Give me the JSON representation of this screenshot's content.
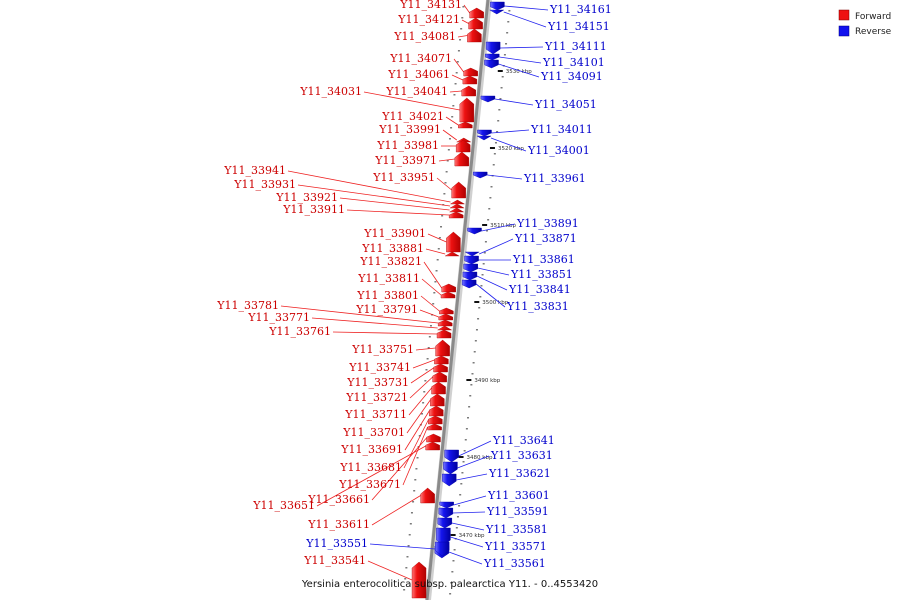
{
  "caption": "Yersinia enterocolitica subsp. palearctica Y11. - 0..4553420",
  "legend": [
    {
      "label": "Forward",
      "color": "#ee1111"
    },
    {
      "label": "Reverse",
      "color": "#1111ee"
    }
  ],
  "ticks": [
    "3530 kbp",
    "3520 kbp",
    "3510 kbp",
    "3500 kbp",
    "3490 kbp",
    "3480 kbp",
    "3470 kbp"
  ],
  "forward_genes": [
    "Y11_34131",
    "Y11_34121",
    "Y11_34081",
    "Y11_34071",
    "Y11_34061",
    "Y11_34041",
    "Y11_34031",
    "Y11_34021",
    "Y11_33991",
    "Y11_33981",
    "Y11_33971",
    "Y11_33951",
    "Y11_33941",
    "Y11_33931",
    "Y11_33921",
    "Y11_33911",
    "Y11_33901",
    "Y11_33881",
    "Y11_33821",
    "Y11_33811",
    "Y11_33801",
    "Y11_33791",
    "Y11_33781",
    "Y11_33771",
    "Y11_33761",
    "Y11_33751",
    "Y11_33741",
    "Y11_33731",
    "Y11_33721",
    "Y11_33711",
    "Y11_33701",
    "Y11_33691",
    "Y11_33681",
    "Y11_33671",
    "Y11_33661",
    "Y11_33651",
    "Y11_33611",
    "Y11_33541"
  ],
  "reverse_genes": [
    "Y11_34161",
    "Y11_34151",
    "Y11_34111",
    "Y11_34101",
    "Y11_34091",
    "Y11_34051",
    "Y11_34011",
    "Y11_34001",
    "Y11_33961",
    "Y11_33891",
    "Y11_33871",
    "Y11_33861",
    "Y11_33851",
    "Y11_33841",
    "Y11_33831",
    "Y11_33641",
    "Y11_33631",
    "Y11_33621",
    "Y11_33601",
    "Y11_33591",
    "Y11_33581",
    "Y11_33571",
    "Y11_33561",
    "Y11_33551"
  ]
}
